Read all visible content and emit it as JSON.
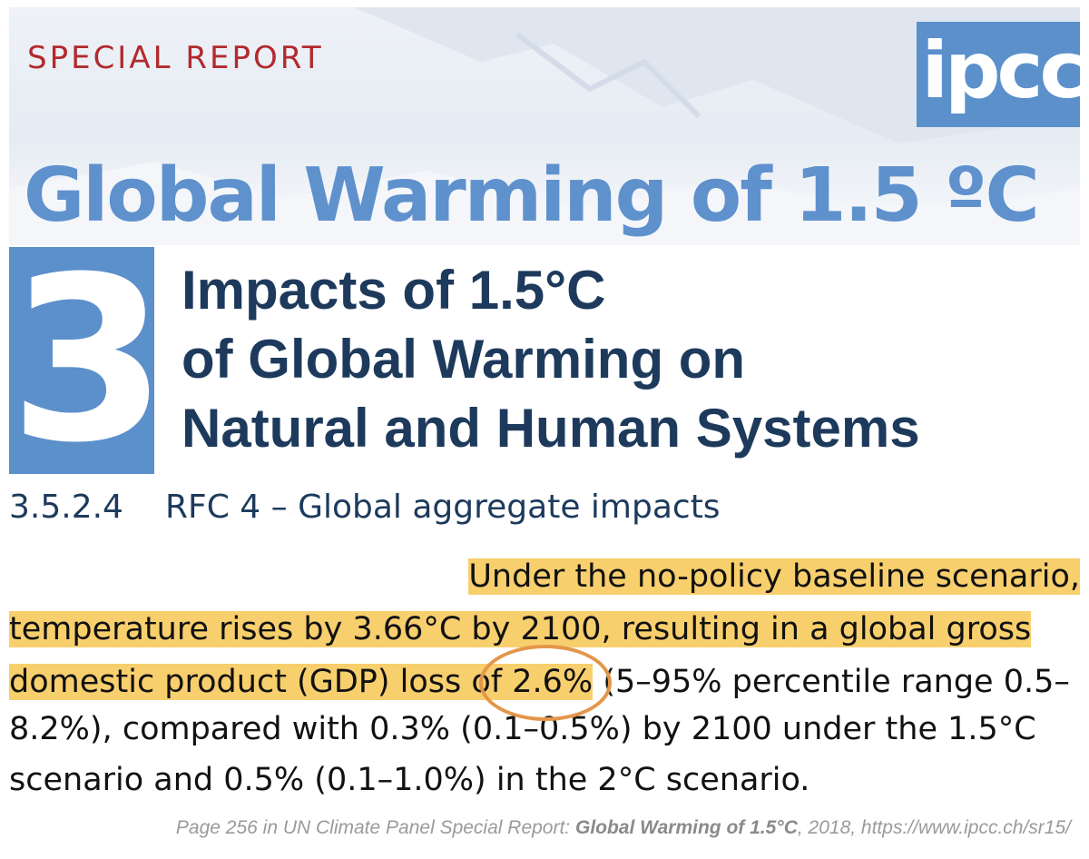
{
  "banner": {
    "label": "SPECIAL REPORT",
    "logo": "ipcc",
    "title": "Global Warming of 1.5 ºC"
  },
  "chapter": {
    "number": "3",
    "title_lines": [
      "Impacts of 1.5°C",
      "of Global Warming on",
      "Natural and Human Systems"
    ]
  },
  "section": {
    "number": "3.5.2.4",
    "title": "RFC 4 – Global aggregate impacts"
  },
  "body": {
    "line1": "Under the no-policy baseline scenario,",
    "line2": "temperature rises by 3.66°C by 2100, resulting in a global gross",
    "line3_highlight": "domestic product (GDP) loss of 2.6%",
    "line3_rest": " (5–95% percentile range 0.5–",
    "line4": "8.2%), compared with 0.3% (0.1–0.5%) by 2100 under the 1.5°C",
    "line5": "scenario and 0.5% (0.1–1.0%) in the 2°C scenario.",
    "circled_value": "2.6%"
  },
  "caption": {
    "prefix": "Page 256 in UN Climate Panel Special Report: ",
    "title": "Global Warming of 1.5°C",
    "suffix": ", 2018, https://www.ipcc.ch/sr15/"
  },
  "colors": {
    "accent_blue": "#5b90cb",
    "title_navy": "#1d3a5c",
    "report_red": "#b22a2e",
    "highlight_yellow": "#f8cf6d",
    "circle_orange": "#e39649"
  }
}
